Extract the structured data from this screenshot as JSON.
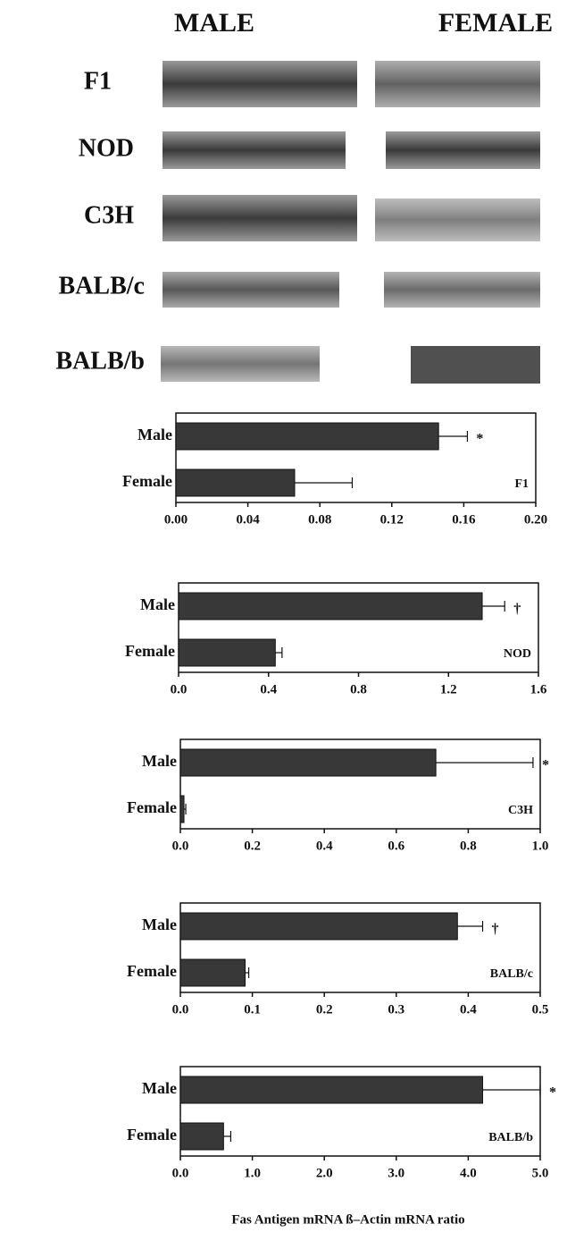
{
  "blot": {
    "columns": [
      "MALE",
      "FEMALE"
    ],
    "rows": [
      "F1",
      "NOD",
      "C3H",
      "BALB/c",
      "BALB/b"
    ]
  },
  "chart_data": [
    {
      "type": "bar",
      "label": "F1",
      "categories": [
        "Male",
        "Female"
      ],
      "values": [
        0.146,
        0.066
      ],
      "errors": [
        0.016,
        0.032
      ],
      "markers": [
        "*",
        null
      ],
      "xlim": [
        0,
        0.2
      ],
      "xticks": [
        {
          "value": 0,
          "label": "0.00"
        },
        0.04,
        0.08,
        0.12,
        0.16,
        {
          "value": 0.2,
          "label": "0.20"
        }
      ],
      "color": "#383838"
    },
    {
      "type": "bar",
      "label": "NOD",
      "categories": [
        "Male",
        "Female"
      ],
      "values": [
        1.35,
        0.43
      ],
      "errors": [
        0.1,
        0.03
      ],
      "markers": [
        "†",
        null
      ],
      "xlim": [
        0,
        1.6
      ],
      "xticks": [
        {
          "value": 0,
          "label": "0.0"
        },
        0.4,
        0.8,
        1.2,
        1.6
      ],
      "color": "#383838"
    },
    {
      "type": "bar",
      "label": "C3H",
      "categories": [
        "Male",
        "Female"
      ],
      "values": [
        0.71,
        0.01
      ],
      "errors": [
        0.27,
        0.005
      ],
      "markers": [
        "*",
        null
      ],
      "xlim": [
        0,
        1
      ],
      "xticks": [
        {
          "value": 0,
          "label": "0.0"
        },
        0.2,
        0.4,
        0.6,
        0.8,
        {
          "value": 1,
          "label": "1.0"
        }
      ],
      "color": "#383838"
    },
    {
      "type": "bar",
      "label": "BALB/c",
      "categories": [
        "Male",
        "Female"
      ],
      "values": [
        0.385,
        0.09
      ],
      "errors": [
        0.035,
        0.005
      ],
      "markers": [
        "†",
        null
      ],
      "xlim": [
        0,
        0.5
      ],
      "xticks": [
        {
          "value": 0,
          "label": "0.0"
        },
        0.1,
        0.2,
        0.3,
        0.4,
        0.5
      ],
      "color": "#383838"
    },
    {
      "type": "bar",
      "label": "BALB/b",
      "categories": [
        "Male",
        "Female"
      ],
      "values": [
        4.2,
        0.6
      ],
      "errors": [
        0.8,
        0.1
      ],
      "markers": [
        "*",
        null
      ],
      "xlim": [
        0,
        5
      ],
      "xticks": [
        {
          "value": 0,
          "label": "0.0"
        },
        {
          "value": 1,
          "label": "1.0"
        },
        {
          "value": 2,
          "label": "2.0"
        },
        {
          "value": 3,
          "label": "3.0"
        },
        {
          "value": 4,
          "label": "4.0"
        },
        {
          "value": 5,
          "label": "5.0"
        }
      ],
      "color": "#383838"
    }
  ],
  "footer": "Fas Antigen mRNA  ß–Actin mRNA ratio"
}
